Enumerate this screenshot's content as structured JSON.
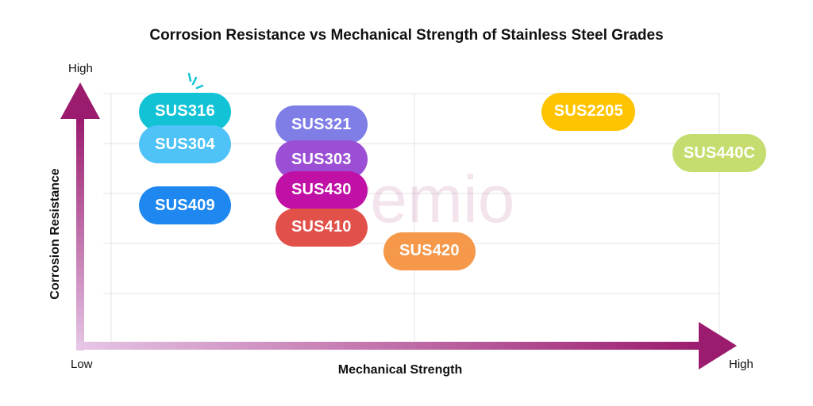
{
  "chart_data": {
    "type": "scatter",
    "title": "Corrosion Resistance vs Mechanical Strength of Stainless Steel Grades",
    "xlabel": "Mechanical Strength",
    "ylabel": "Corrosion Resistance",
    "x_axis_low": "Low",
    "x_axis_high": "High",
    "y_axis_low": "Low",
    "y_axis_high": "High",
    "xlim": [
      0,
      10
    ],
    "ylim": [
      0,
      10
    ],
    "grid": true,
    "points": [
      {
        "label": "SUS316",
        "x": 0.6,
        "y": 9.5,
        "color": "#12C3D6"
      },
      {
        "label": "SUS304",
        "x": 0.6,
        "y": 8.0,
        "color": "#4FC3F7"
      },
      {
        "label": "SUS409",
        "x": 0.6,
        "y": 5.2,
        "color": "#1E88F0"
      },
      {
        "label": "SUS321",
        "x": 3.0,
        "y": 8.9,
        "color": "#7E7EE6"
      },
      {
        "label": "SUS303",
        "x": 3.0,
        "y": 7.3,
        "color": "#9B4FD4"
      },
      {
        "label": "SUS430",
        "x": 3.0,
        "y": 5.9,
        "color": "#C010A5"
      },
      {
        "label": "SUS410",
        "x": 3.0,
        "y": 4.2,
        "color": "#E2504A"
      },
      {
        "label": "SUS420",
        "x": 4.9,
        "y": 3.1,
        "color": "#F5984A"
      },
      {
        "label": "SUS2205",
        "x": 7.7,
        "y": 9.5,
        "color": "#FFC300"
      },
      {
        "label": "SUS440C",
        "x": 10.0,
        "y": 7.6,
        "color": "#C5DD6E"
      }
    ]
  },
  "watermark": "premio",
  "colors": {
    "axis_start": "#E6C6E6",
    "axis_end": "#9B1B6E",
    "grid": "#E3E3E3",
    "sparkle": "#12C3D6"
  }
}
